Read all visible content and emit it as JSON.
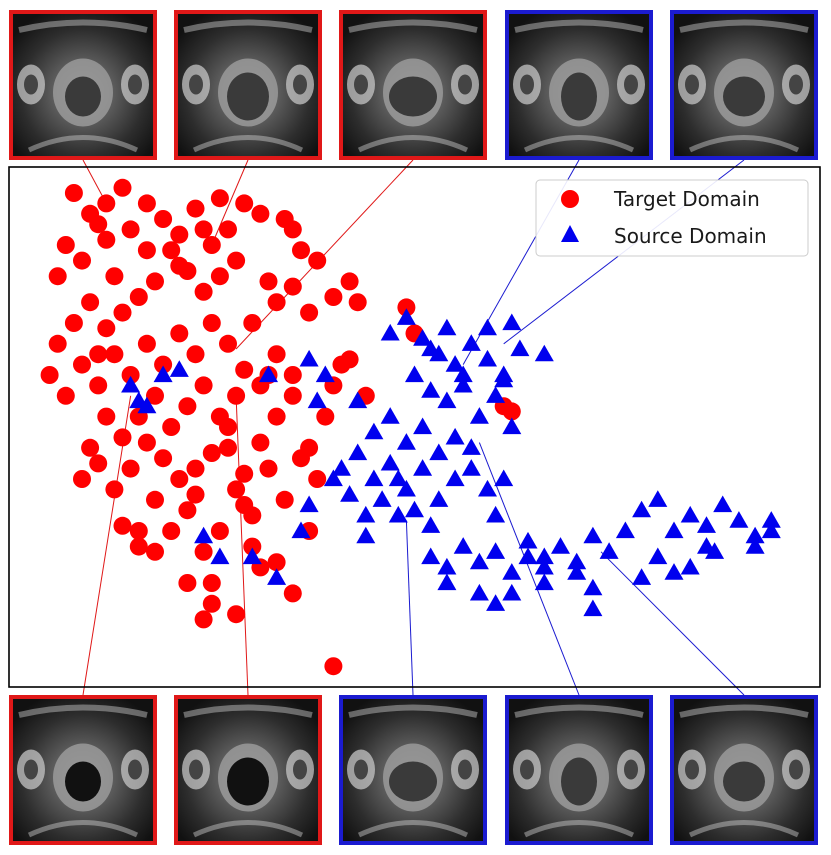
{
  "chart_data": {
    "type": "scatter",
    "title": "",
    "xlabel": "",
    "ylabel": "",
    "xlim": [
      0,
      100
    ],
    "ylim": [
      0,
      100
    ],
    "grid": false,
    "axis_ticks": false,
    "legend_position": "top-right",
    "series": [
      {
        "name": "Target Domain",
        "marker": "circle",
        "color": "#ff0000",
        "points": [
          [
            8,
            95
          ],
          [
            10,
            91
          ],
          [
            12,
            93
          ],
          [
            14,
            96
          ],
          [
            11,
            89
          ],
          [
            7,
            85
          ],
          [
            9,
            82
          ],
          [
            6,
            79
          ],
          [
            12,
            86
          ],
          [
            15,
            88
          ],
          [
            17,
            84
          ],
          [
            19,
            90
          ],
          [
            21,
            87
          ],
          [
            23,
            92
          ],
          [
            25,
            85
          ],
          [
            27,
            88
          ],
          [
            29,
            93
          ],
          [
            31,
            91
          ],
          [
            28,
            82
          ],
          [
            26,
            79
          ],
          [
            24,
            76
          ],
          [
            21,
            81
          ],
          [
            18,
            78
          ],
          [
            16,
            75
          ],
          [
            14,
            72
          ],
          [
            12,
            69
          ],
          [
            10,
            74
          ],
          [
            8,
            70
          ],
          [
            6,
            66
          ],
          [
            5,
            60
          ],
          [
            7,
            56
          ],
          [
            9,
            62
          ],
          [
            11,
            58
          ],
          [
            13,
            64
          ],
          [
            15,
            60
          ],
          [
            17,
            66
          ],
          [
            19,
            62
          ],
          [
            21,
            68
          ],
          [
            23,
            64
          ],
          [
            25,
            70
          ],
          [
            27,
            66
          ],
          [
            29,
            61
          ],
          [
            31,
            58
          ],
          [
            33,
            64
          ],
          [
            35,
            60
          ],
          [
            37,
            72
          ],
          [
            35,
            77
          ],
          [
            33,
            74
          ],
          [
            36,
            84
          ],
          [
            38,
            82
          ],
          [
            35,
            88
          ],
          [
            32,
            78
          ],
          [
            30,
            70
          ],
          [
            28,
            56
          ],
          [
            26,
            52
          ],
          [
            24,
            58
          ],
          [
            22,
            54
          ],
          [
            20,
            50
          ],
          [
            18,
            56
          ],
          [
            16,
            52
          ],
          [
            14,
            48
          ],
          [
            12,
            52
          ],
          [
            10,
            46
          ],
          [
            9,
            40
          ],
          [
            11,
            43
          ],
          [
            13,
            38
          ],
          [
            15,
            42
          ],
          [
            17,
            47
          ],
          [
            19,
            44
          ],
          [
            21,
            40
          ],
          [
            23,
            37
          ],
          [
            25,
            45
          ],
          [
            27,
            50
          ],
          [
            29,
            41
          ],
          [
            31,
            47
          ],
          [
            33,
            52
          ],
          [
            35,
            56
          ],
          [
            37,
            46
          ],
          [
            39,
            52
          ],
          [
            40,
            58
          ],
          [
            41,
            62
          ],
          [
            38,
            40
          ],
          [
            36,
            44
          ],
          [
            34,
            36
          ],
          [
            32,
            42
          ],
          [
            30,
            33
          ],
          [
            28,
            38
          ],
          [
            26,
            30
          ],
          [
            24,
            26
          ],
          [
            22,
            34
          ],
          [
            20,
            30
          ],
          [
            18,
            36
          ],
          [
            16,
            27
          ],
          [
            14,
            31
          ],
          [
            30,
            27
          ],
          [
            33,
            24
          ],
          [
            35,
            18
          ],
          [
            24,
            13
          ],
          [
            28,
            14
          ],
          [
            25,
            16
          ],
          [
            16,
            30
          ],
          [
            22,
            20
          ],
          [
            40,
            75
          ],
          [
            43,
            74
          ],
          [
            42,
            78
          ],
          [
            50,
            68
          ],
          [
            49,
            73
          ],
          [
            44,
            56
          ],
          [
            61,
            54
          ],
          [
            62,
            53
          ],
          [
            40,
            4
          ],
          [
            22,
            80
          ],
          [
            20,
            84
          ],
          [
            24,
            88
          ],
          [
            34,
            90
          ],
          [
            26,
            94
          ],
          [
            17,
            93
          ],
          [
            13,
            79
          ],
          [
            11,
            64
          ],
          [
            27,
            46
          ],
          [
            29,
            35
          ],
          [
            37,
            30
          ],
          [
            31,
            23
          ],
          [
            25,
            20
          ],
          [
            42,
            63
          ],
          [
            18,
            26
          ],
          [
            23,
            42
          ],
          [
            32,
            60
          ]
        ]
      },
      {
        "name": "Source Domain",
        "marker": "triangle",
        "color": "#0000ee",
        "points": [
          [
            47,
            68
          ],
          [
            49,
            71
          ],
          [
            51,
            67
          ],
          [
            53,
            64
          ],
          [
            55,
            62
          ],
          [
            57,
            66
          ],
          [
            59,
            63
          ],
          [
            61,
            60
          ],
          [
            63,
            65
          ],
          [
            50,
            60
          ],
          [
            52,
            57
          ],
          [
            54,
            55
          ],
          [
            56,
            58
          ],
          [
            58,
            52
          ],
          [
            60,
            56
          ],
          [
            62,
            50
          ],
          [
            57,
            46
          ],
          [
            55,
            48
          ],
          [
            53,
            45
          ],
          [
            51,
            50
          ],
          [
            49,
            47
          ],
          [
            47,
            52
          ],
          [
            45,
            49
          ],
          [
            43,
            45
          ],
          [
            45,
            40
          ],
          [
            47,
            43
          ],
          [
            49,
            38
          ],
          [
            51,
            42
          ],
          [
            53,
            36
          ],
          [
            55,
            40
          ],
          [
            57,
            42
          ],
          [
            59,
            38
          ],
          [
            61,
            40
          ],
          [
            48,
            33
          ],
          [
            46,
            36
          ],
          [
            44,
            33
          ],
          [
            42,
            37
          ],
          [
            44,
            29
          ],
          [
            50,
            34
          ],
          [
            52,
            31
          ],
          [
            52,
            25
          ],
          [
            54,
            23
          ],
          [
            56,
            27
          ],
          [
            58,
            24
          ],
          [
            60,
            26
          ],
          [
            62,
            22
          ],
          [
            64,
            25
          ],
          [
            66,
            23
          ],
          [
            68,
            27
          ],
          [
            70,
            24
          ],
          [
            72,
            29
          ],
          [
            74,
            26
          ],
          [
            76,
            30
          ],
          [
            78,
            34
          ],
          [
            80,
            36
          ],
          [
            82,
            30
          ],
          [
            84,
            33
          ],
          [
            86,
            31
          ],
          [
            88,
            35
          ],
          [
            90,
            32
          ],
          [
            92,
            29
          ],
          [
            94,
            32
          ],
          [
            86,
            27
          ],
          [
            84,
            23
          ],
          [
            82,
            22
          ],
          [
            80,
            25
          ],
          [
            78,
            21
          ],
          [
            72,
            19
          ],
          [
            70,
            22
          ],
          [
            66,
            20
          ],
          [
            62,
            18
          ],
          [
            60,
            16
          ],
          [
            54,
            20
          ],
          [
            58,
            18
          ],
          [
            66,
            25
          ],
          [
            64,
            28
          ],
          [
            62,
            70
          ],
          [
            61,
            59
          ],
          [
            66,
            64
          ],
          [
            72,
            15
          ],
          [
            94,
            30
          ],
          [
            41,
            42
          ],
          [
            40,
            40
          ],
          [
            43,
            55
          ],
          [
            26,
            25
          ],
          [
            24,
            29
          ],
          [
            30,
            25
          ],
          [
            33,
            21
          ],
          [
            37,
            35
          ],
          [
            36,
            30
          ],
          [
            21,
            61
          ],
          [
            19,
            60
          ],
          [
            16,
            55
          ],
          [
            15,
            58
          ],
          [
            17,
            54
          ],
          [
            37,
            63
          ],
          [
            39,
            60
          ],
          [
            38,
            55
          ],
          [
            32,
            60
          ],
          [
            48,
            40
          ],
          [
            52,
            65
          ],
          [
            56,
            60
          ],
          [
            54,
            69
          ],
          [
            59,
            69
          ],
          [
            92,
            27
          ],
          [
            60,
            33
          ],
          [
            87,
            26
          ]
        ]
      }
    ],
    "legend": [
      "Target Domain",
      "Source Domain"
    ],
    "thumbnails": {
      "top": [
        {
          "domain": "target",
          "color": "#e01818",
          "target_point": [
            12,
            93
          ]
        },
        {
          "domain": "target",
          "color": "#e01818",
          "target_point": [
            25,
            85
          ]
        },
        {
          "domain": "target",
          "color": "#e01818",
          "target_point": [
            28,
            65
          ]
        },
        {
          "domain": "source",
          "color": "#1b1bd0",
          "target_point": [
            56,
            62
          ]
        },
        {
          "domain": "source",
          "color": "#1b1bd0",
          "target_point": [
            61,
            66
          ]
        }
      ],
      "bottom": [
        {
          "domain": "target",
          "color": "#e01818",
          "target_point": [
            15,
            56
          ]
        },
        {
          "domain": "target",
          "color": "#e01818",
          "target_point": [
            28,
            56
          ]
        },
        {
          "domain": "source",
          "color": "#1b1bd0",
          "target_point": [
            49,
            32
          ]
        },
        {
          "domain": "source",
          "color": "#1b1bd0",
          "target_point": [
            58,
            47
          ]
        },
        {
          "domain": "source",
          "color": "#1b1bd0",
          "target_point": [
            73,
            26
          ]
        }
      ]
    }
  }
}
